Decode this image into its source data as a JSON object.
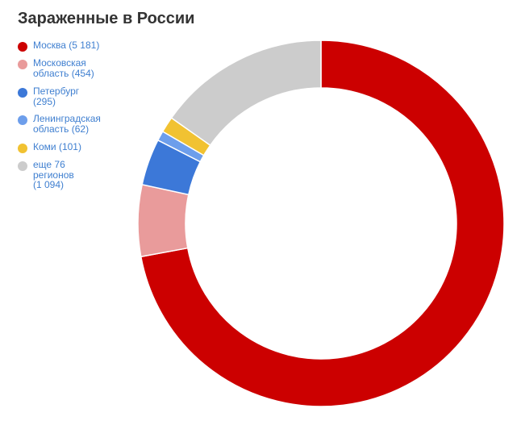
{
  "chart_data": {
    "type": "pie",
    "title": "Зараженные в России",
    "legend_position": "left",
    "slices": [
      {
        "label": "Москва (5 181)",
        "value": 5181,
        "color": "#cc0000"
      },
      {
        "label": "Московская\nобласть (454)",
        "value": 454,
        "color": "#e99b9b"
      },
      {
        "label": "Петербург\n(295)",
        "value": 295,
        "color": "#3c78d8"
      },
      {
        "label": "Ленинградская\nобласть (62)",
        "value": 62,
        "color": "#6d9eeb"
      },
      {
        "label": "Коми (101)",
        "value": 101,
        "color": "#f1c232"
      },
      {
        "label": "еще 76\nрегионов\n(1 094)",
        "value": 1094,
        "color": "#cccccc"
      }
    ]
  }
}
